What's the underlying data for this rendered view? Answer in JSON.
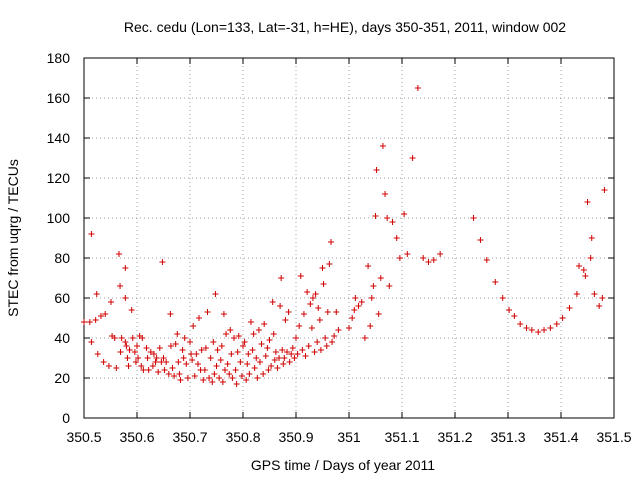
{
  "chart_data": {
    "type": "scatter",
    "title": "Rec. cedu (Lon=133, Lat=-31, h=HE), days 350-351, 2011, window 002",
    "xlabel": "GPS time / Days of year 2011",
    "ylabel": "STEC from uqrg / TECUs",
    "xlim": [
      350.5,
      351.5
    ],
    "ylim": [
      0,
      180
    ],
    "xticks": [
      350.5,
      350.6,
      350.7,
      350.8,
      350.9,
      351.0,
      351.1,
      351.2,
      351.3,
      351.4,
      351.5
    ],
    "xtick_labels": [
      "350.5",
      "350.6",
      "350.7",
      "350.8",
      "350.9",
      "351",
      "351.1",
      "351.2",
      "351.3",
      "351.4",
      "351.5"
    ],
    "yticks": [
      0,
      20,
      40,
      60,
      80,
      100,
      120,
      140,
      160,
      180
    ],
    "ytick_labels": [
      "0",
      "20",
      "40",
      "60",
      "80",
      "100",
      "120",
      "140",
      "160",
      "180"
    ],
    "grid": true,
    "marker": "+",
    "color": "#d00000",
    "points": [
      [
        350.5,
        48
      ],
      [
        350.511,
        48
      ],
      [
        350.514,
        92
      ],
      [
        350.514,
        38
      ],
      [
        350.522,
        49
      ],
      [
        350.524,
        62
      ],
      [
        350.526,
        32
      ],
      [
        350.532,
        51
      ],
      [
        350.537,
        28
      ],
      [
        350.54,
        52
      ],
      [
        350.547,
        26
      ],
      [
        350.551,
        58
      ],
      [
        350.553,
        41
      ],
      [
        350.558,
        40
      ],
      [
        350.561,
        25
      ],
      [
        350.566,
        82
      ],
      [
        350.568,
        66
      ],
      [
        350.569,
        33
      ],
      [
        350.571,
        40
      ],
      [
        350.578,
        75
      ],
      [
        350.578,
        60
      ],
      [
        350.578,
        38
      ],
      [
        350.58,
        36
      ],
      [
        350.582,
        30
      ],
      [
        350.584,
        26
      ],
      [
        350.586,
        34
      ],
      [
        350.59,
        54
      ],
      [
        350.592,
        40
      ],
      [
        350.596,
        33
      ],
      [
        350.598,
        28
      ],
      [
        350.6,
        36
      ],
      [
        350.602,
        30
      ],
      [
        350.605,
        41
      ],
      [
        350.608,
        26
      ],
      [
        350.61,
        40
      ],
      [
        350.612,
        24
      ],
      [
        350.618,
        35
      ],
      [
        350.62,
        30
      ],
      [
        350.622,
        24
      ],
      [
        350.626,
        33
      ],
      [
        350.63,
        26
      ],
      [
        350.632,
        32
      ],
      [
        350.635,
        28
      ],
      [
        350.637,
        30
      ],
      [
        350.64,
        23
      ],
      [
        350.643,
        35
      ],
      [
        350.646,
        28
      ],
      [
        350.648,
        78
      ],
      [
        350.65,
        30
      ],
      [
        350.652,
        24
      ],
      [
        350.655,
        28
      ],
      [
        350.66,
        22
      ],
      [
        350.663,
        52
      ],
      [
        350.664,
        36
      ],
      [
        350.667,
        25
      ],
      [
        350.67,
        21
      ],
      [
        350.673,
        37
      ],
      [
        350.676,
        42
      ],
      [
        350.678,
        28
      ],
      [
        350.68,
        22
      ],
      [
        350.682,
        19
      ],
      [
        350.686,
        34
      ],
      [
        350.688,
        30
      ],
      [
        350.69,
        40
      ],
      [
        350.693,
        27
      ],
      [
        350.696,
        20
      ],
      [
        350.7,
        38
      ],
      [
        350.702,
        32
      ],
      [
        350.704,
        29
      ],
      [
        350.706,
        46
      ],
      [
        350.709,
        21
      ],
      [
        350.712,
        32
      ],
      [
        350.715,
        27
      ],
      [
        350.717,
        50
      ],
      [
        350.72,
        24
      ],
      [
        350.722,
        34
      ],
      [
        350.725,
        19
      ],
      [
        350.728,
        24
      ],
      [
        350.73,
        35
      ],
      [
        350.733,
        53
      ],
      [
        350.736,
        20
      ],
      [
        350.739,
        30
      ],
      [
        350.742,
        18
      ],
      [
        350.744,
        38
      ],
      [
        350.746,
        22
      ],
      [
        350.748,
        62
      ],
      [
        350.75,
        26
      ],
      [
        350.752,
        34
      ],
      [
        350.755,
        20
      ],
      [
        350.758,
        29
      ],
      [
        350.76,
        36
      ],
      [
        350.762,
        18
      ],
      [
        350.764,
        52
      ],
      [
        350.766,
        24
      ],
      [
        350.768,
        42
      ],
      [
        350.771,
        27
      ],
      [
        350.774,
        22
      ],
      [
        350.776,
        44
      ],
      [
        350.778,
        32
      ],
      [
        350.78,
        20
      ],
      [
        350.783,
        40
      ],
      [
        350.786,
        24
      ],
      [
        350.788,
        17
      ],
      [
        350.79,
        33
      ],
      [
        350.792,
        41
      ],
      [
        350.795,
        28
      ],
      [
        350.798,
        21
      ],
      [
        350.8,
        36
      ],
      [
        350.803,
        38
      ],
      [
        350.806,
        19
      ],
      [
        350.808,
        27
      ],
      [
        350.81,
        32
      ],
      [
        350.812,
        22
      ],
      [
        350.815,
        48
      ],
      [
        350.818,
        34
      ],
      [
        350.82,
        42
      ],
      [
        350.822,
        25
      ],
      [
        350.825,
        30
      ],
      [
        350.827,
        20
      ],
      [
        350.83,
        44
      ],
      [
        350.832,
        28
      ],
      [
        350.835,
        37
      ],
      [
        350.838,
        22
      ],
      [
        350.84,
        47
      ],
      [
        350.843,
        31
      ],
      [
        350.846,
        35
      ],
      [
        350.848,
        24
      ],
      [
        350.85,
        39
      ],
      [
        350.853,
        26
      ],
      [
        350.856,
        58
      ],
      [
        350.858,
        42
      ],
      [
        350.86,
        29
      ],
      [
        350.862,
        33
      ],
      [
        350.865,
        25
      ],
      [
        350.868,
        30
      ],
      [
        350.87,
        56
      ],
      [
        350.872,
        70
      ],
      [
        350.874,
        34
      ],
      [
        350.876,
        27
      ],
      [
        350.878,
        30
      ],
      [
        350.88,
        49
      ],
      [
        350.883,
        33
      ],
      [
        350.886,
        53
      ],
      [
        350.888,
        28
      ],
      [
        350.891,
        32
      ],
      [
        350.894,
        35
      ],
      [
        350.897,
        30
      ],
      [
        350.9,
        40
      ],
      [
        350.903,
        32
      ],
      [
        350.906,
        46
      ],
      [
        350.909,
        71
      ],
      [
        350.912,
        34
      ],
      [
        350.915,
        52
      ],
      [
        350.918,
        31
      ],
      [
        350.921,
        63
      ],
      [
        350.924,
        36
      ],
      [
        350.927,
        57
      ],
      [
        350.93,
        45
      ],
      [
        350.932,
        60
      ],
      [
        350.935,
        33
      ],
      [
        350.937,
        62
      ],
      [
        350.94,
        38
      ],
      [
        350.942,
        55
      ],
      [
        350.945,
        49
      ],
      [
        350.947,
        34
      ],
      [
        350.95,
        75
      ],
      [
        350.952,
        67
      ],
      [
        350.955,
        40
      ],
      [
        350.958,
        36
      ],
      [
        350.96,
        53
      ],
      [
        350.963,
        77
      ],
      [
        350.966,
        88
      ],
      [
        350.968,
        38
      ],
      [
        350.972,
        41
      ],
      [
        350.976,
        53
      ],
      [
        350.98,
        44
      ],
      [
        351.0,
        45
      ],
      [
        351.006,
        50
      ],
      [
        351.01,
        54
      ],
      [
        351.012,
        60
      ],
      [
        351.018,
        56
      ],
      [
        351.024,
        58
      ],
      [
        351.03,
        40
      ],
      [
        351.036,
        76
      ],
      [
        351.04,
        46
      ],
      [
        351.043,
        60
      ],
      [
        351.046,
        66
      ],
      [
        351.05,
        101
      ],
      [
        351.052,
        124
      ],
      [
        351.056,
        52
      ],
      [
        351.06,
        70
      ],
      [
        351.064,
        136
      ],
      [
        351.068,
        112
      ],
      [
        351.072,
        100
      ],
      [
        351.076,
        66
      ],
      [
        351.082,
        98
      ],
      [
        351.09,
        90
      ],
      [
        351.096,
        80
      ],
      [
        351.104,
        102
      ],
      [
        351.11,
        82
      ],
      [
        351.12,
        130
      ],
      [
        351.13,
        165
      ],
      [
        351.14,
        80
      ],
      [
        351.15,
        78
      ],
      [
        351.16,
        79
      ],
      [
        351.172,
        82
      ],
      [
        351.235,
        100
      ],
      [
        351.248,
        89
      ],
      [
        351.26,
        79
      ],
      [
        351.276,
        68
      ],
      [
        351.29,
        60
      ],
      [
        351.302,
        54
      ],
      [
        351.312,
        51
      ],
      [
        351.323,
        47
      ],
      [
        351.335,
        45
      ],
      [
        351.345,
        44
      ],
      [
        351.357,
        43
      ],
      [
        351.368,
        44
      ],
      [
        351.38,
        45
      ],
      [
        351.392,
        47
      ],
      [
        351.403,
        50
      ],
      [
        351.416,
        55
      ],
      [
        351.43,
        62
      ],
      [
        351.434,
        76
      ],
      [
        351.443,
        74
      ],
      [
        351.446,
        71
      ],
      [
        351.45,
        108
      ],
      [
        351.456,
        80
      ],
      [
        351.458,
        90
      ],
      [
        351.463,
        62
      ],
      [
        351.472,
        56
      ],
      [
        351.478,
        60
      ],
      [
        351.482,
        114
      ]
    ]
  }
}
